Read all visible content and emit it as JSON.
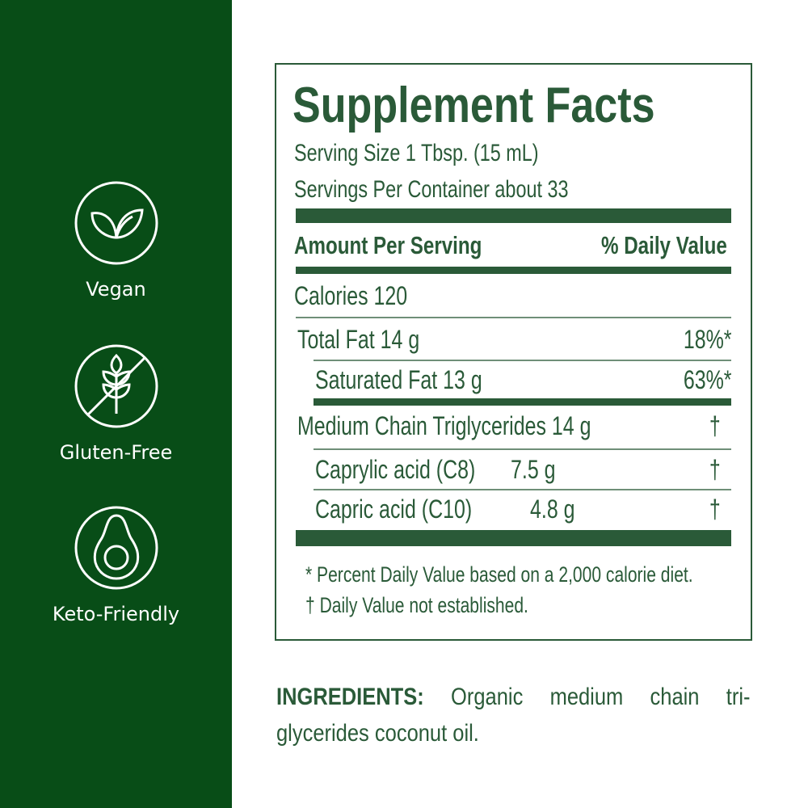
{
  "badges": [
    {
      "icon": "leaf-icon",
      "label": "Vegan"
    },
    {
      "icon": "no-wheat-icon",
      "label": "Gluten-Free"
    },
    {
      "icon": "avocado-icon",
      "label": "Keto-Friendly"
    }
  ],
  "facts": {
    "title": "Supplement Facts",
    "serving_size": "Serving Size  1 Tbsp. (15 mL)",
    "servings_per_container": "Servings Per Container about 33",
    "amount_header": "Amount Per Serving",
    "dv_header": "% Daily Value",
    "calories": "Calories 120",
    "rows": [
      {
        "name": "Total Fat 14 g",
        "dv": "18%*"
      },
      {
        "name": "Saturated Fat 13 g",
        "dv": "63%*"
      },
      {
        "name": "Medium Chain Triglycerides 14 g",
        "dv": "†"
      },
      {
        "name": "Caprylic acid (C8)",
        "amount": "7.5 g",
        "dv": "†"
      },
      {
        "name": "Capric acid (C10)",
        "amount": "4.8 g",
        "dv": "†"
      }
    ],
    "footnote1": "* Percent Daily Value based on a 2,000 calorie diet.",
    "footnote2": "†  Daily Value not established."
  },
  "ingredients": {
    "label": "INGREDIENTS:",
    "text": " Organic medium chain tri-glycerides coconut oil."
  },
  "colors": {
    "panel": "#084d17",
    "label_green": "#2a5a38"
  }
}
